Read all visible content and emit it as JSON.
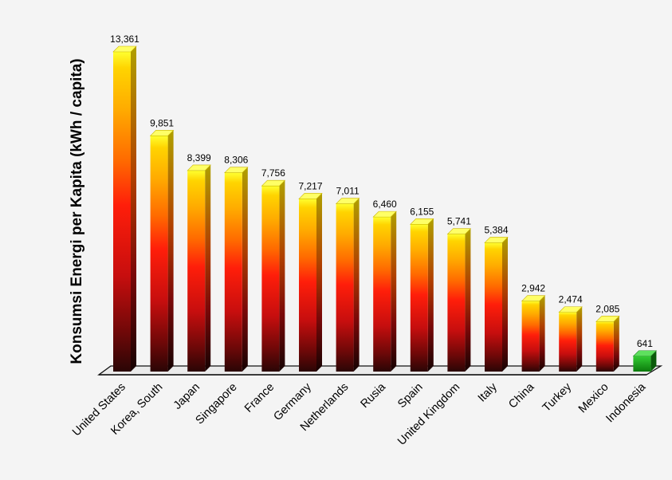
{
  "chart_data": {
    "type": "bar",
    "title": "",
    "xlabel": "",
    "ylabel": "Konsumsi Energi per Kapita (kWh / capita)",
    "categories": [
      "United States",
      "Korea, South",
      "Japan",
      "Singapore",
      "France",
      "Germany",
      "Netherlands",
      "Rusia",
      "Spain",
      "United Kingdom",
      "Italy",
      "China",
      "Turkey",
      "Mexico",
      "Indonesia"
    ],
    "values": [
      13361,
      9851,
      8399,
      8306,
      7756,
      7217,
      7011,
      6460,
      6155,
      5741,
      5384,
      2942,
      2474,
      2085,
      641
    ],
    "value_labels": [
      "13,361",
      "9,851",
      "8,399",
      "8,306",
      "7,756",
      "7,217",
      "7,011",
      "6,460",
      "6,155",
      "5,741",
      "5,384",
      "2,942",
      "2,474",
      "2,085",
      "641"
    ],
    "ylim": [
      0,
      13361
    ],
    "grid": false,
    "legend": "none",
    "style": "3d gradient bars, highlighted last bar",
    "colors": {
      "gradient_bottom_to_top": [
        "#2a0505",
        "#6e0808",
        "#c70e0e",
        "#ff2a0a",
        "#ff6a00",
        "#ffb000",
        "#ffff20"
      ],
      "highlight": "#22aa22"
    }
  }
}
